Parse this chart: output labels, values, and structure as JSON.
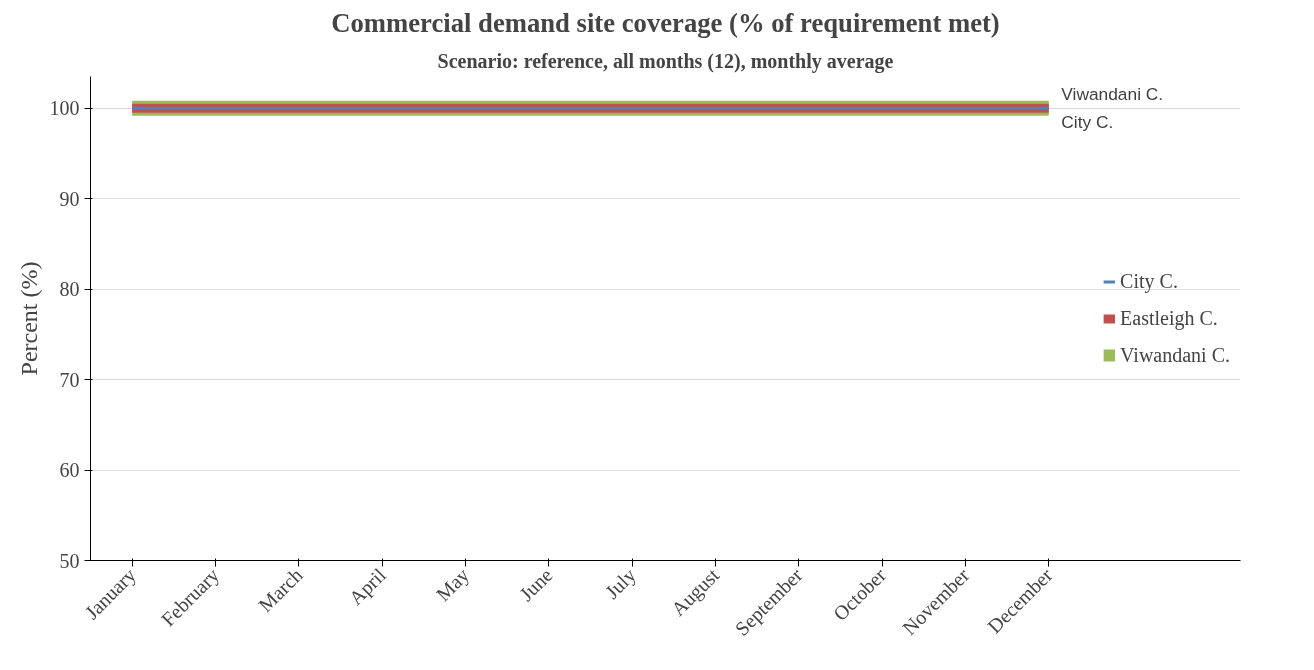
{
  "chart_data": {
    "type": "line",
    "title": "Commercial demand site coverage (% of requirement met)",
    "subtitle": "Scenario: reference, all months (12), monthly average",
    "ylabel": "Percent (%)",
    "categories": [
      "January",
      "February",
      "March",
      "April",
      "May",
      "June",
      "July",
      "August",
      "September",
      "October",
      "November",
      "December"
    ],
    "series": [
      {
        "name": "City C.",
        "color": "#4f81bd",
        "values": [
          100,
          100,
          100,
          100,
          100,
          100,
          100,
          100,
          100,
          100,
          100,
          100
        ]
      },
      {
        "name": "Eastleigh C.",
        "color": "#c0504d",
        "values": [
          100,
          100,
          100,
          100,
          100,
          100,
          100,
          100,
          100,
          100,
          100,
          100
        ]
      },
      {
        "name": "Viwandani C.",
        "color": "#9bbb59",
        "values": [
          100,
          100,
          100,
          100,
          100,
          100,
          100,
          100,
          100,
          100,
          100,
          100
        ]
      }
    ],
    "ylim": [
      50,
      100
    ],
    "yticks": [
      50,
      60,
      70,
      80,
      90,
      100
    ],
    "grid": "y",
    "legend": "right",
    "annotations": [
      "Viwandani C.",
      "City C."
    ]
  }
}
